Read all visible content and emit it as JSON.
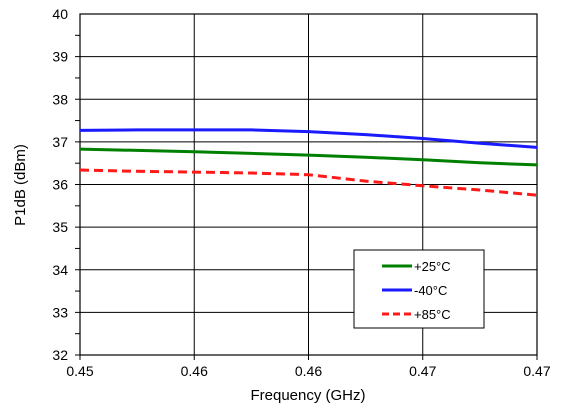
{
  "chart_data": {
    "type": "line",
    "title": "",
    "xlabel": "Frequency (GHz)",
    "ylabel": "P1dB (dBm)",
    "xlim": [
      0.45,
      0.47
    ],
    "ylim": [
      32,
      40
    ],
    "xticks": [
      0.45,
      0.455,
      0.46,
      0.465,
      0.47
    ],
    "xtick_labels": [
      "0.45",
      "0.46",
      "0.46",
      "0.47",
      "0.47"
    ],
    "yticks": [
      32,
      33,
      34,
      35,
      36,
      37,
      38,
      39,
      40
    ],
    "grid": true,
    "legend_position": "bottom-right",
    "series": [
      {
        "name": "+25°C",
        "color": "#008000",
        "dash": "solid",
        "x": [
          0.45,
          0.4525,
          0.455,
          0.4575,
          0.46,
          0.4625,
          0.465,
          0.4675,
          0.47
        ],
        "y": [
          36.83,
          36.8,
          36.77,
          36.73,
          36.69,
          36.64,
          36.58,
          36.51,
          36.46
        ]
      },
      {
        "name": "-40°C",
        "color": "#1a1aff",
        "dash": "solid",
        "x": [
          0.45,
          0.4525,
          0.455,
          0.4575,
          0.46,
          0.4625,
          0.465,
          0.4675,
          0.47
        ],
        "y": [
          37.27,
          37.28,
          37.28,
          37.28,
          37.24,
          37.17,
          37.08,
          36.97,
          36.87
        ]
      },
      {
        "name": "+85°C",
        "color": "#ff1a1a",
        "dash": "dashed",
        "x": [
          0.45,
          0.4525,
          0.455,
          0.4575,
          0.46,
          0.4625,
          0.465,
          0.4675,
          0.47
        ],
        "y": [
          36.34,
          36.31,
          36.29,
          36.27,
          36.23,
          36.08,
          35.97,
          35.87,
          35.75
        ]
      }
    ]
  }
}
